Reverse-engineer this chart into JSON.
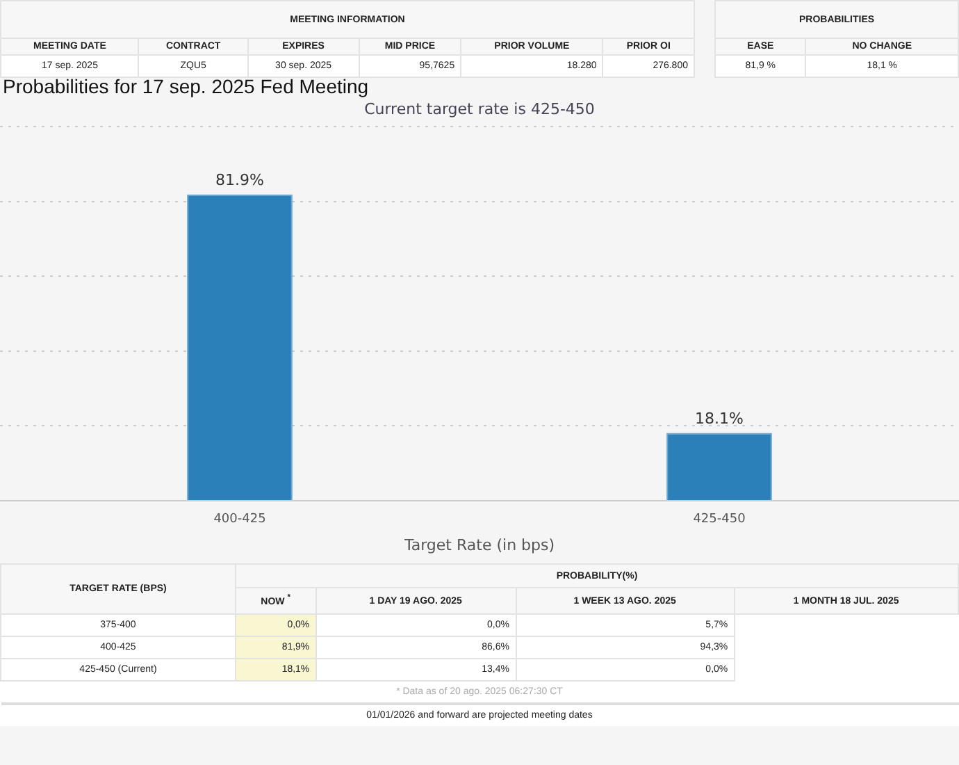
{
  "chart_data": {
    "type": "bar",
    "title": "Probabilities for 17 sep. 2025 Fed Meeting",
    "subtitle": "Current target rate is 425-450",
    "xlabel": "Target Rate (in bps)",
    "categories": [
      "400-425",
      "425-450"
    ],
    "values": [
      81.9,
      18.1
    ],
    "color": "#2b80b9",
    "value_labels": [
      "81.9%",
      "18.1%"
    ],
    "ylim": [
      0,
      100
    ],
    "yticks": [
      {
        "value": 0,
        "label": null
      },
      {
        "value": 20,
        "label": null
      },
      {
        "value": 40,
        "label": null
      },
      {
        "value": 60,
        "label": null
      },
      {
        "value": 80,
        "label": null
      },
      {
        "value": 100,
        "label": null
      }
    ],
    "tick_labels": "x",
    "grid": "y",
    "legend": false,
    "annotations": [
      "MEETING INFORMATION",
      "MEETING DATE",
      "CONTRACT",
      "EXPIRES",
      "MID PRICE",
      "PRIOR VOLUME",
      "PRIOR OI",
      "17 sep. 2025",
      "ZQU5",
      "30 sep. 2025",
      "95,7625",
      "18.280",
      "276.800",
      "PROBABILITIES",
      "EASE",
      "NO CHANGE",
      "81,9 %",
      "18,1 %",
      "TARGET RATE (BPS)",
      "PROBABILITY(%)",
      "NOW $^{*}$",
      "1 DAY 19 AGO. 2025",
      "1 WEEK 13 AGO. 2025",
      "1 MONTH 18 JUL. 2025",
      "375-400",
      "0,0%",
      "0,0%",
      "5,7%",
      "400-425",
      "81,9%",
      "86,6%",
      "94,3%",
      "425-450 (Current)",
      "18,1%",
      "13,4%",
      "0,0%",
      "* Data as of 20 ago. 2025 06:27:30 CT",
      "01/01/2026 and forward are projected meeting dates"
    ]
  }
}
